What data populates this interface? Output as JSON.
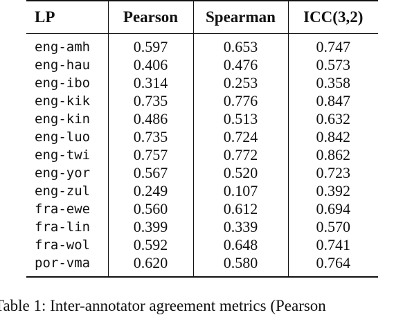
{
  "table": {
    "headers": [
      "LP",
      "Pearson",
      "Spearman",
      "ICC(3,2)"
    ],
    "rows": [
      [
        "eng-amh",
        "0.597",
        "0.653",
        "0.747"
      ],
      [
        "eng-hau",
        "0.406",
        "0.476",
        "0.573"
      ],
      [
        "eng-ibo",
        "0.314",
        "0.253",
        "0.358"
      ],
      [
        "eng-kik",
        "0.735",
        "0.776",
        "0.847"
      ],
      [
        "eng-kin",
        "0.486",
        "0.513",
        "0.632"
      ],
      [
        "eng-luo",
        "0.735",
        "0.724",
        "0.842"
      ],
      [
        "eng-twi",
        "0.757",
        "0.772",
        "0.862"
      ],
      [
        "eng-yor",
        "0.567",
        "0.520",
        "0.723"
      ],
      [
        "eng-zul",
        "0.249",
        "0.107",
        "0.392"
      ],
      [
        "fra-ewe",
        "0.560",
        "0.612",
        "0.694"
      ],
      [
        "fra-lin",
        "0.399",
        "0.339",
        "0.570"
      ],
      [
        "fra-wol",
        "0.592",
        "0.648",
        "0.741"
      ],
      [
        "por-vma",
        "0.620",
        "0.580",
        "0.764"
      ]
    ]
  },
  "caption": "Table 1:  Inter-annotator agreement metrics (Pearson"
}
